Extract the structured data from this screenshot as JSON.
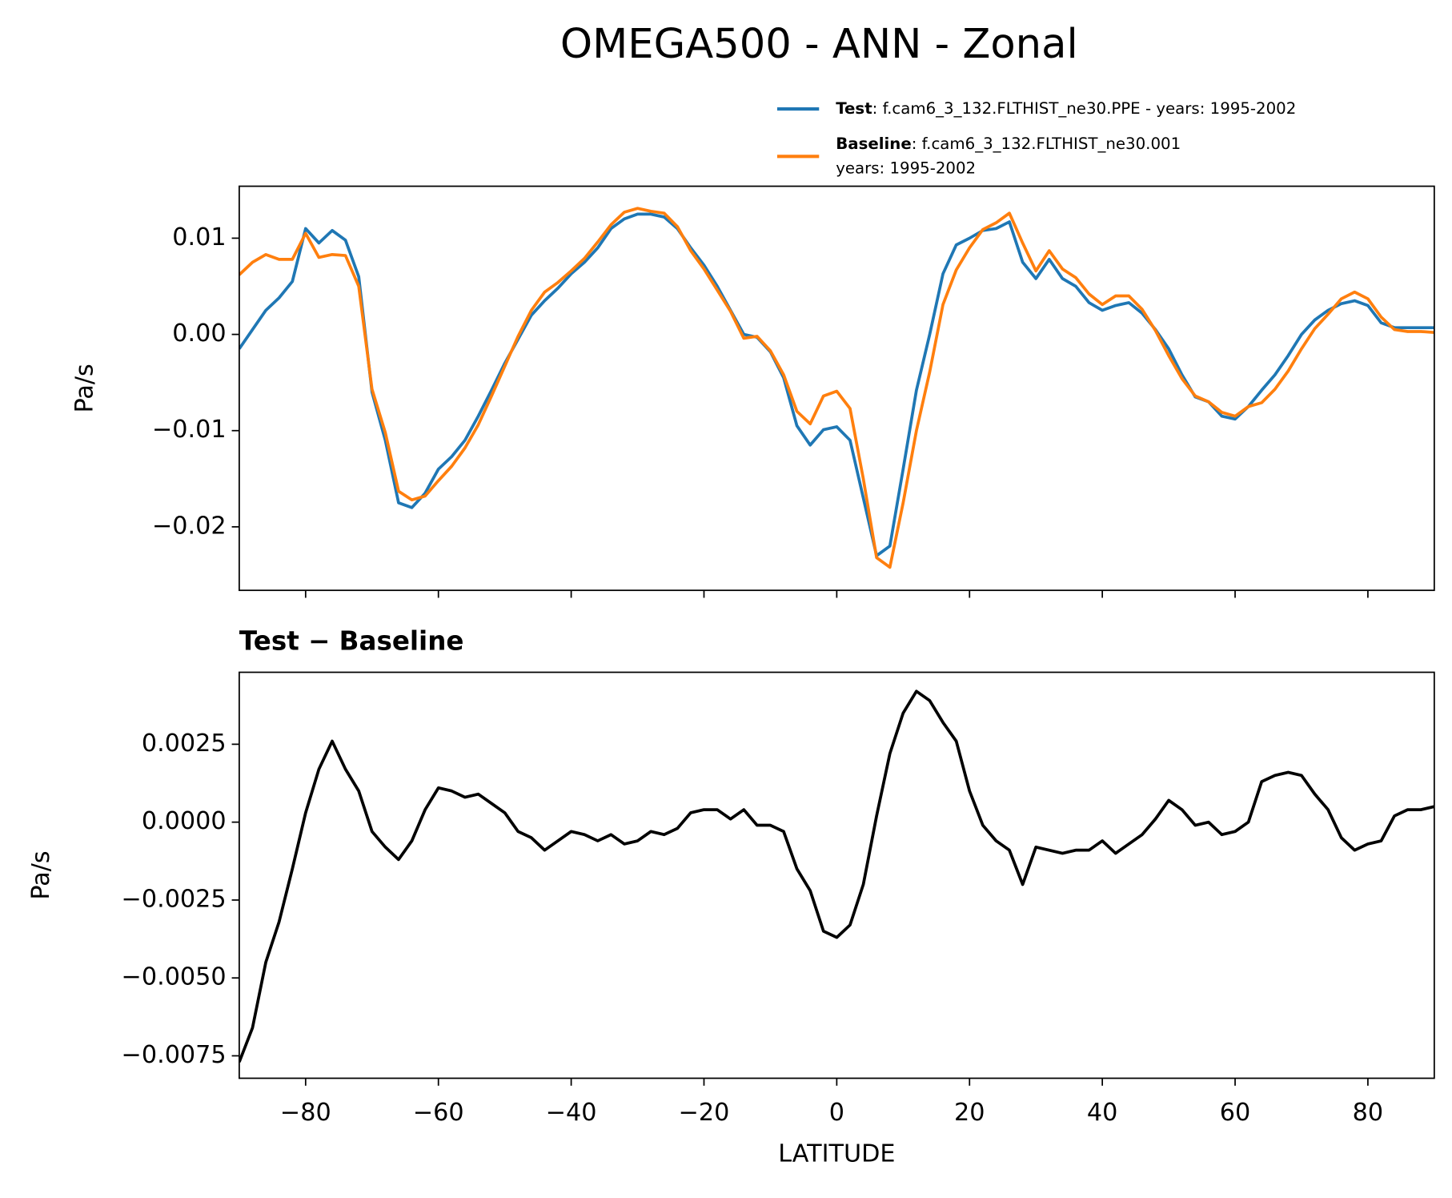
{
  "chart_data": [
    {
      "type": "line",
      "title": "OMEGA500 - ANN - Zonal",
      "y_label": "Pa/s",
      "x": [
        -90,
        -88,
        -86,
        -84,
        -82,
        -80,
        -78,
        -76,
        -74,
        -72,
        -70,
        -68,
        -66,
        -64,
        -62,
        -60,
        -58,
        -56,
        -54,
        -52,
        -50,
        -48,
        -46,
        -44,
        -42,
        -40,
        -38,
        -36,
        -34,
        -32,
        -30,
        -28,
        -26,
        -24,
        -22,
        -20,
        -18,
        -16,
        -14,
        -12,
        -10,
        -8,
        -6,
        -4,
        -2,
        0,
        2,
        4,
        6,
        8,
        10,
        12,
        14,
        16,
        18,
        20,
        22,
        24,
        26,
        28,
        30,
        32,
        34,
        36,
        38,
        40,
        42,
        44,
        46,
        48,
        50,
        52,
        54,
        56,
        58,
        60,
        62,
        64,
        66,
        68,
        70,
        72,
        74,
        76,
        78,
        80,
        82,
        84,
        86,
        88,
        90
      ],
      "series": [
        {
          "name": "Test",
          "description": [
            ": f.cam6_3_132.FLTHIST_ne30.PPE - years: 1995-2002"
          ],
          "color": "#1f77b4",
          "values": [
            -0.0015,
            0.0005,
            0.0025,
            0.0038,
            0.0055,
            0.011,
            0.0095,
            0.0108,
            0.0098,
            0.006,
            -0.006,
            -0.011,
            -0.0175,
            -0.018,
            -0.0165,
            -0.014,
            -0.0127,
            -0.011,
            -0.0085,
            -0.0058,
            -0.003,
            -0.0005,
            0.002,
            0.0035,
            0.0048,
            0.0063,
            0.0075,
            0.009,
            0.011,
            0.012,
            0.0125,
            0.0125,
            0.0122,
            0.011,
            0.009,
            0.0072,
            0.005,
            0.0025,
            0.0,
            -0.0003,
            -0.0018,
            -0.0045,
            -0.0095,
            -0.0115,
            -0.0099,
            -0.0096,
            -0.011,
            -0.017,
            -0.023,
            -0.022,
            -0.014,
            -0.0058,
            0.0,
            0.0063,
            0.0093,
            0.01,
            0.0108,
            0.011,
            0.0117,
            0.0075,
            0.0058,
            0.0078,
            0.0058,
            0.005,
            0.0033,
            0.0025,
            0.003,
            0.0033,
            0.0022,
            0.0005,
            -0.0015,
            -0.0042,
            -0.0065,
            -0.007,
            -0.0085,
            -0.0088,
            -0.0075,
            -0.0058,
            -0.0042,
            -0.0022,
            0.0,
            0.0015,
            0.0025,
            0.0032,
            0.0035,
            0.003,
            0.0012,
            0.0007,
            0.0007,
            0.0007,
            0.0007
          ]
        },
        {
          "name": "Baseline",
          "description": [
            ": f.cam6_3_132.FLTHIST_ne30.001",
            "years: 1995-2002"
          ],
          "color": "#ff7f0e",
          "values": [
            0.0062,
            0.0075,
            0.0083,
            0.0078,
            0.0078,
            0.0105,
            0.008,
            0.0083,
            0.0082,
            0.005,
            -0.0057,
            -0.0102,
            -0.0163,
            -0.0172,
            -0.0168,
            -0.0152,
            -0.0137,
            -0.0118,
            -0.0094,
            -0.0064,
            -0.0033,
            -0.0002,
            0.0025,
            0.0044,
            0.0054,
            0.0066,
            0.0079,
            0.0096,
            0.0114,
            0.0127,
            0.0131,
            0.0128,
            0.0126,
            0.0112,
            0.0087,
            0.0068,
            0.0046,
            0.0024,
            -0.0004,
            -0.0002,
            -0.0017,
            -0.0042,
            -0.008,
            -0.0093,
            -0.0064,
            -0.0059,
            -0.0077,
            -0.015,
            -0.0232,
            -0.0242,
            -0.0175,
            -0.01,
            -0.0039,
            0.0031,
            0.0067,
            0.009,
            0.0109,
            0.0116,
            0.0126,
            0.0095,
            0.0066,
            0.0087,
            0.0068,
            0.0059,
            0.0042,
            0.0031,
            0.004,
            0.004,
            0.0026,
            0.0004,
            -0.0022,
            -0.0046,
            -0.0064,
            -0.007,
            -0.0081,
            -0.0085,
            -0.0075,
            -0.0071,
            -0.0057,
            -0.0038,
            -0.0015,
            0.0006,
            0.0021,
            0.0037,
            0.0044,
            0.0037,
            0.0018,
            0.0005,
            0.0003,
            0.0003,
            0.0002
          ]
        }
      ],
      "xlim": [
        -90,
        90
      ],
      "xticks": [
        -80,
        -60,
        -40,
        -20,
        0,
        20,
        40,
        60,
        80
      ],
      "ylim": [
        -0.0266,
        0.0154
      ],
      "yticks": [
        {
          "value": -0.02,
          "label": "−0.02"
        },
        {
          "value": -0.01,
          "label": "−0.01"
        },
        {
          "value": 0,
          "label": "0.00"
        },
        {
          "value": 0.01,
          "label": "0.01"
        }
      ]
    },
    {
      "type": "line",
      "title": "Test − Baseline",
      "y_label": "Pa/s",
      "x_label": "LATITUDE",
      "color": "#000000",
      "x": [
        -90,
        -88,
        -86,
        -84,
        -82,
        -80,
        -78,
        -76,
        -74,
        -72,
        -70,
        -68,
        -66,
        -64,
        -62,
        -60,
        -58,
        -56,
        -54,
        -52,
        -50,
        -48,
        -46,
        -44,
        -42,
        -40,
        -38,
        -36,
        -34,
        -32,
        -30,
        -28,
        -26,
        -24,
        -22,
        -20,
        -18,
        -16,
        -14,
        -12,
        -10,
        -8,
        -6,
        -4,
        -2,
        0,
        2,
        4,
        6,
        8,
        10,
        12,
        14,
        16,
        18,
        20,
        22,
        24,
        26,
        28,
        30,
        32,
        34,
        36,
        38,
        40,
        42,
        44,
        46,
        48,
        50,
        52,
        54,
        56,
        58,
        60,
        62,
        64,
        66,
        68,
        70,
        72,
        74,
        76,
        78,
        80,
        82,
        84,
        86,
        88,
        90
      ],
      "values": [
        -0.0077,
        -0.0066,
        -0.0045,
        -0.0032,
        -0.0015,
        0.0003,
        0.0017,
        0.0026,
        0.0017,
        0.001,
        -0.0003,
        -0.0008,
        -0.0012,
        -0.0006,
        0.0004,
        0.0011,
        0.001,
        0.0008,
        0.0009,
        0.0006,
        0.0003,
        -0.0003,
        -0.0005,
        -0.0009,
        -0.0006,
        -0.0003,
        -0.0004,
        -0.0006,
        -0.0004,
        -0.0007,
        -0.0006,
        -0.0003,
        -0.0004,
        -0.0002,
        0.0003,
        0.0004,
        0.0004,
        0.0001,
        0.0004,
        -0.0001,
        -0.0001,
        -0.0003,
        -0.0015,
        -0.0022,
        -0.0035,
        -0.0037,
        -0.0033,
        -0.002,
        0.0002,
        0.0022,
        0.0035,
        0.0042,
        0.0039,
        0.0032,
        0.0026,
        0.001,
        -0.0001,
        -0.0006,
        -0.0009,
        -0.002,
        -0.0008,
        -0.0009,
        -0.001,
        -0.0009,
        -0.0009,
        -0.0006,
        -0.001,
        -0.0007,
        -0.0004,
        0.0001,
        0.0007,
        0.0004,
        -0.0001,
        0.0,
        -0.0004,
        -0.0003,
        0.0,
        0.0013,
        0.0015,
        0.0016,
        0.0015,
        0.0009,
        0.0004,
        -0.0005,
        -0.0009,
        -0.0007,
        -0.0006,
        0.0002,
        0.0004,
        0.0004,
        0.0005
      ],
      "xlim": [
        -90,
        90
      ],
      "xticks": [
        {
          "value": -80,
          "label": "−80"
        },
        {
          "value": -60,
          "label": "−60"
        },
        {
          "value": -40,
          "label": "−40"
        },
        {
          "value": -20,
          "label": "−20"
        },
        0,
        20,
        40,
        60,
        80
      ],
      "ylim": [
        -0.00822,
        0.00481
      ],
      "yticks": [
        {
          "value": -0.0075,
          "label": "−0.0075"
        },
        {
          "value": -0.005,
          "label": "−0.0050"
        },
        {
          "value": -0.0025,
          "label": "−0.0025"
        },
        {
          "value": 0,
          "label": "0.0000"
        },
        {
          "value": 0.0025,
          "label": "0.0025"
        }
      ]
    }
  ]
}
